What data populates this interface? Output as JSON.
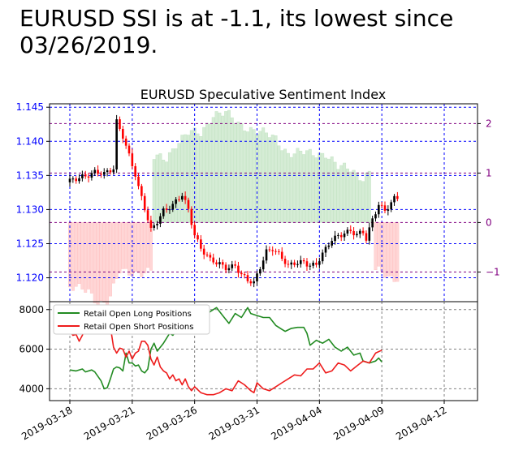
{
  "headline": "EURUSD SSI is at -1.1, its lowest since 03/26/2019.",
  "chart_data": [
    {
      "type": "candlestick+bar",
      "title": "EURUSD Speculative Sentiment Index",
      "price_axis": {
        "ylim": [
          1.1165,
          1.1455
        ],
        "ticks": [
          "1.120",
          "1.125",
          "1.130",
          "1.135",
          "1.140",
          "1.145"
        ],
        "tick_values": [
          1.12,
          1.125,
          1.13,
          1.135,
          1.14,
          1.145
        ],
        "color": "#0000ff"
      },
      "ssi_axis": {
        "ylim": [
          -1.6,
          2.4
        ],
        "ticks": [
          "−1",
          "0",
          "1",
          "2"
        ],
        "tick_values": [
          -1,
          0,
          1,
          2
        ],
        "color": "#800080"
      },
      "grid": true,
      "price_anchors": [
        [
          0,
          1.134
        ],
        [
          4,
          1.135
        ],
        [
          8,
          1.1355
        ],
        [
          11,
          1.135
        ],
        [
          14,
          1.136
        ],
        [
          15,
          1.143
        ],
        [
          17,
          1.141
        ],
        [
          19,
          1.138
        ],
        [
          21,
          1.135
        ],
        [
          22,
          1.133
        ],
        [
          24,
          1.13
        ],
        [
          26,
          1.127
        ],
        [
          28,
          1.1285
        ],
        [
          30,
          1.13
        ],
        [
          33,
          1.1305
        ],
        [
          36,
          1.132
        ],
        [
          38,
          1.13
        ],
        [
          40,
          1.1265
        ],
        [
          42,
          1.1245
        ],
        [
          45,
          1.1225
        ],
        [
          47,
          1.122
        ],
        [
          50,
          1.1215
        ],
        [
          53,
          1.122
        ],
        [
          55,
          1.1205
        ],
        [
          57,
          1.1195
        ],
        [
          59,
          1.119
        ],
        [
          61,
          1.1215
        ],
        [
          63,
          1.124
        ],
        [
          65,
          1.1245
        ],
        [
          67,
          1.1235
        ],
        [
          70,
          1.1215
        ],
        [
          72,
          1.122
        ],
        [
          75,
          1.1225
        ],
        [
          77,
          1.122
        ],
        [
          79,
          1.122
        ],
        [
          82,
          1.124
        ],
        [
          84,
          1.1255
        ],
        [
          86,
          1.1262
        ],
        [
          88,
          1.1268
        ],
        [
          90,
          1.127
        ],
        [
          92,
          1.1262
        ],
        [
          94,
          1.1265
        ],
        [
          95,
          1.1255
        ],
        [
          97,
          1.1285
        ],
        [
          99,
          1.131
        ],
        [
          101,
          1.13
        ],
        [
          103,
          1.131
        ],
        [
          104,
          1.1315
        ],
        [
          105,
          1.1315
        ]
      ],
      "ssi_anchors": [
        [
          0,
          -1.3
        ],
        [
          6,
          -1.4
        ],
        [
          9,
          -1.6
        ],
        [
          12,
          -1.6
        ],
        [
          13,
          -1.5
        ],
        [
          16,
          -1.0
        ],
        [
          22,
          -1.0
        ],
        [
          26,
          -1.0
        ],
        [
          27,
          1.3
        ],
        [
          31,
          1.3
        ],
        [
          34,
          1.6
        ],
        [
          38,
          1.8
        ],
        [
          42,
          1.8
        ],
        [
          46,
          2.2
        ],
        [
          50,
          2.2
        ],
        [
          54,
          2.0
        ],
        [
          58,
          1.9
        ],
        [
          62,
          1.8
        ],
        [
          66,
          1.7
        ],
        [
          70,
          1.4
        ],
        [
          74,
          1.4
        ],
        [
          78,
          1.4
        ],
        [
          82,
          1.4
        ],
        [
          86,
          1.1
        ],
        [
          90,
          1.1
        ],
        [
          94,
          0.9
        ],
        [
          96,
          1.0
        ],
        [
          98,
          -1.0
        ],
        [
          100,
          -1.0
        ],
        [
          102,
          -1.1
        ],
        [
          104,
          -1.1
        ],
        [
          105,
          -1.1
        ]
      ],
      "bullish_candle_color": "#000000",
      "bearish_candle_color": "#ff0000",
      "ssi_long_bar_color": "#d5ecd5",
      "ssi_short_bar_color": "#ffd6d6"
    },
    {
      "type": "line",
      "ylim": [
        3400,
        8400
      ],
      "ticks": [
        "4000",
        "6000",
        "8000"
      ],
      "tick_values": [
        4000,
        6000,
        8000
      ],
      "grid": true,
      "legend_position": "top-left",
      "x_tick_labels": [
        "2019-03-18",
        "2019-03-21",
        "2019-03-26",
        "2019-03-31",
        "2019-04-04",
        "2019-04-09",
        "2019-04-12"
      ],
      "x_tick_index": [
        0,
        20,
        40,
        60,
        80,
        100,
        120
      ],
      "series": [
        {
          "name": "Retail Open Long Positions",
          "color": "#228b22",
          "anchors": [
            [
              0,
              4950
            ],
            [
              2,
              4900
            ],
            [
              4,
              5000
            ],
            [
              5,
              4850
            ],
            [
              7,
              4950
            ],
            [
              8,
              4850
            ],
            [
              10,
              4400
            ],
            [
              11,
              4000
            ],
            [
              12,
              4050
            ],
            [
              13,
              4500
            ],
            [
              14,
              5000
            ],
            [
              15,
              5100
            ],
            [
              16,
              5050
            ],
            [
              17,
              4900
            ],
            [
              18,
              5800
            ],
            [
              19,
              5300
            ],
            [
              20,
              5300
            ],
            [
              21,
              5150
            ],
            [
              22,
              5200
            ],
            [
              23,
              4900
            ],
            [
              24,
              4800
            ],
            [
              25,
              5000
            ],
            [
              26,
              6000
            ],
            [
              27,
              6300
            ],
            [
              28,
              5900
            ],
            [
              30,
              6300
            ],
            [
              32,
              6800
            ],
            [
              33,
              6700
            ],
            [
              35,
              7100
            ],
            [
              37,
              7000
            ],
            [
              39,
              7400
            ],
            [
              41,
              7300
            ],
            [
              43,
              7600
            ],
            [
              45,
              7900
            ],
            [
              47,
              8100
            ],
            [
              49,
              7700
            ],
            [
              51,
              7300
            ],
            [
              53,
              7800
            ],
            [
              55,
              7600
            ],
            [
              57,
              8100
            ],
            [
              58,
              7800
            ],
            [
              60,
              7700
            ],
            [
              62,
              7600
            ],
            [
              64,
              7600
            ],
            [
              66,
              7200
            ],
            [
              68,
              7000
            ],
            [
              69,
              6900
            ],
            [
              71,
              7050
            ],
            [
              73,
              7100
            ],
            [
              75,
              7100
            ],
            [
              76,
              6800
            ],
            [
              77,
              6200
            ],
            [
              79,
              6450
            ],
            [
              81,
              6300
            ],
            [
              83,
              6500
            ],
            [
              85,
              6100
            ],
            [
              87,
              5900
            ],
            [
              89,
              6100
            ],
            [
              91,
              5700
            ],
            [
              93,
              5800
            ],
            [
              94,
              5400
            ],
            [
              96,
              5300
            ],
            [
              98,
              5400
            ],
            [
              99,
              5550
            ],
            [
              100,
              5350
            ]
          ]
        },
        {
          "name": "Retail Open Short Positions",
          "color": "#ee1c1c",
          "anchors": [
            [
              0,
              6900
            ],
            [
              1,
              6700
            ],
            [
              2,
              6750
            ],
            [
              3,
              6400
            ],
            [
              4,
              6700
            ],
            [
              5,
              7100
            ],
            [
              6,
              7050
            ],
            [
              7,
              7300
            ],
            [
              8,
              6900
            ],
            [
              9,
              7650
            ],
            [
              10,
              7950
            ],
            [
              11,
              7700
            ],
            [
              12,
              7500
            ],
            [
              13,
              7150
            ],
            [
              14,
              6100
            ],
            [
              15,
              5800
            ],
            [
              16,
              6050
            ],
            [
              17,
              6000
            ],
            [
              18,
              5600
            ],
            [
              19,
              5900
            ],
            [
              20,
              5500
            ],
            [
              21,
              5800
            ],
            [
              22,
              5900
            ],
            [
              23,
              6400
            ],
            [
              24,
              6400
            ],
            [
              25,
              6200
            ],
            [
              26,
              5500
            ],
            [
              27,
              5200
            ],
            [
              28,
              5600
            ],
            [
              29,
              5100
            ],
            [
              30,
              4900
            ],
            [
              31,
              4800
            ],
            [
              32,
              4500
            ],
            [
              33,
              4700
            ],
            [
              34,
              4400
            ],
            [
              35,
              4500
            ],
            [
              36,
              4200
            ],
            [
              37,
              4500
            ],
            [
              38,
              4100
            ],
            [
              39,
              3900
            ],
            [
              40,
              4100
            ],
            [
              42,
              3800
            ],
            [
              44,
              3700
            ],
            [
              46,
              3700
            ],
            [
              48,
              3800
            ],
            [
              50,
              4000
            ],
            [
              52,
              3900
            ],
            [
              54,
              4400
            ],
            [
              56,
              4200
            ],
            [
              58,
              3900
            ],
            [
              59,
              3800
            ],
            [
              60,
              4300
            ],
            [
              62,
              4000
            ],
            [
              64,
              3900
            ],
            [
              66,
              4100
            ],
            [
              68,
              4300
            ],
            [
              70,
              4500
            ],
            [
              72,
              4700
            ],
            [
              74,
              4650
            ],
            [
              76,
              5000
            ],
            [
              78,
              5000
            ],
            [
              80,
              5300
            ],
            [
              82,
              4800
            ],
            [
              84,
              4900
            ],
            [
              86,
              5300
            ],
            [
              88,
              5200
            ],
            [
              90,
              4900
            ],
            [
              92,
              5150
            ],
            [
              94,
              5400
            ],
            [
              96,
              5300
            ],
            [
              98,
              5800
            ],
            [
              100,
              5950
            ]
          ]
        }
      ]
    }
  ]
}
